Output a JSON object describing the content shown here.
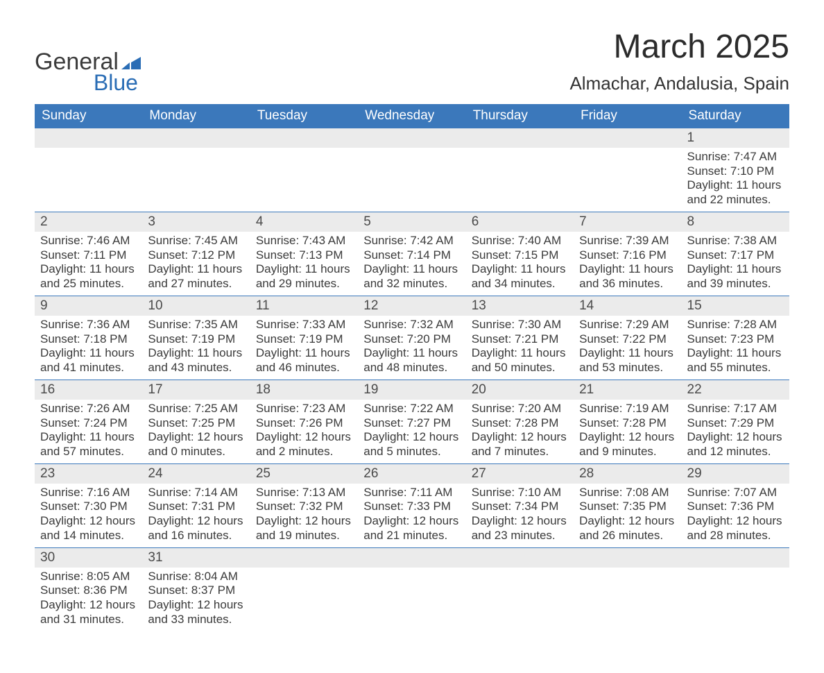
{
  "brand": {
    "word1": "General",
    "word2": "Blue",
    "text_color": "#3b3b3b",
    "accent_color": "#2a6db5"
  },
  "title": "March 2025",
  "location": "Almachar, Andalusia, Spain",
  "colors": {
    "header_bg": "#3b78bb",
    "header_text": "#ffffff",
    "daynum_bg": "#ebebeb",
    "daynum_text": "#4a4a4a",
    "cell_text": "#3a3a3a",
    "row_divider": "#3b78bb",
    "background": "#ffffff"
  },
  "fonts": {
    "title_fontsize": 48,
    "location_fontsize": 26,
    "header_fontsize": 19,
    "daynum_fontsize": 19,
    "cell_fontsize": 17
  },
  "weekday_headers": [
    "Sunday",
    "Monday",
    "Tuesday",
    "Wednesday",
    "Thursday",
    "Friday",
    "Saturday"
  ],
  "weeks": [
    {
      "days": [
        {
          "daynum": "",
          "lines": [
            "",
            "",
            "",
            ""
          ]
        },
        {
          "daynum": "",
          "lines": [
            "",
            "",
            "",
            ""
          ]
        },
        {
          "daynum": "",
          "lines": [
            "",
            "",
            "",
            ""
          ]
        },
        {
          "daynum": "",
          "lines": [
            "",
            "",
            "",
            ""
          ]
        },
        {
          "daynum": "",
          "lines": [
            "",
            "",
            "",
            ""
          ]
        },
        {
          "daynum": "",
          "lines": [
            "",
            "",
            "",
            ""
          ]
        },
        {
          "daynum": "1",
          "lines": [
            "Sunrise: 7:47 AM",
            "Sunset: 7:10 PM",
            "Daylight: 11 hours",
            "and 22 minutes."
          ]
        }
      ]
    },
    {
      "days": [
        {
          "daynum": "2",
          "lines": [
            "Sunrise: 7:46 AM",
            "Sunset: 7:11 PM",
            "Daylight: 11 hours",
            "and 25 minutes."
          ]
        },
        {
          "daynum": "3",
          "lines": [
            "Sunrise: 7:45 AM",
            "Sunset: 7:12 PM",
            "Daylight: 11 hours",
            "and 27 minutes."
          ]
        },
        {
          "daynum": "4",
          "lines": [
            "Sunrise: 7:43 AM",
            "Sunset: 7:13 PM",
            "Daylight: 11 hours",
            "and 29 minutes."
          ]
        },
        {
          "daynum": "5",
          "lines": [
            "Sunrise: 7:42 AM",
            "Sunset: 7:14 PM",
            "Daylight: 11 hours",
            "and 32 minutes."
          ]
        },
        {
          "daynum": "6",
          "lines": [
            "Sunrise: 7:40 AM",
            "Sunset: 7:15 PM",
            "Daylight: 11 hours",
            "and 34 minutes."
          ]
        },
        {
          "daynum": "7",
          "lines": [
            "Sunrise: 7:39 AM",
            "Sunset: 7:16 PM",
            "Daylight: 11 hours",
            "and 36 minutes."
          ]
        },
        {
          "daynum": "8",
          "lines": [
            "Sunrise: 7:38 AM",
            "Sunset: 7:17 PM",
            "Daylight: 11 hours",
            "and 39 minutes."
          ]
        }
      ]
    },
    {
      "days": [
        {
          "daynum": "9",
          "lines": [
            "Sunrise: 7:36 AM",
            "Sunset: 7:18 PM",
            "Daylight: 11 hours",
            "and 41 minutes."
          ]
        },
        {
          "daynum": "10",
          "lines": [
            "Sunrise: 7:35 AM",
            "Sunset: 7:19 PM",
            "Daylight: 11 hours",
            "and 43 minutes."
          ]
        },
        {
          "daynum": "11",
          "lines": [
            "Sunrise: 7:33 AM",
            "Sunset: 7:19 PM",
            "Daylight: 11 hours",
            "and 46 minutes."
          ]
        },
        {
          "daynum": "12",
          "lines": [
            "Sunrise: 7:32 AM",
            "Sunset: 7:20 PM",
            "Daylight: 11 hours",
            "and 48 minutes."
          ]
        },
        {
          "daynum": "13",
          "lines": [
            "Sunrise: 7:30 AM",
            "Sunset: 7:21 PM",
            "Daylight: 11 hours",
            "and 50 minutes."
          ]
        },
        {
          "daynum": "14",
          "lines": [
            "Sunrise: 7:29 AM",
            "Sunset: 7:22 PM",
            "Daylight: 11 hours",
            "and 53 minutes."
          ]
        },
        {
          "daynum": "15",
          "lines": [
            "Sunrise: 7:28 AM",
            "Sunset: 7:23 PM",
            "Daylight: 11 hours",
            "and 55 minutes."
          ]
        }
      ]
    },
    {
      "days": [
        {
          "daynum": "16",
          "lines": [
            "Sunrise: 7:26 AM",
            "Sunset: 7:24 PM",
            "Daylight: 11 hours",
            "and 57 minutes."
          ]
        },
        {
          "daynum": "17",
          "lines": [
            "Sunrise: 7:25 AM",
            "Sunset: 7:25 PM",
            "Daylight: 12 hours",
            "and 0 minutes."
          ]
        },
        {
          "daynum": "18",
          "lines": [
            "Sunrise: 7:23 AM",
            "Sunset: 7:26 PM",
            "Daylight: 12 hours",
            "and 2 minutes."
          ]
        },
        {
          "daynum": "19",
          "lines": [
            "Sunrise: 7:22 AM",
            "Sunset: 7:27 PM",
            "Daylight: 12 hours",
            "and 5 minutes."
          ]
        },
        {
          "daynum": "20",
          "lines": [
            "Sunrise: 7:20 AM",
            "Sunset: 7:28 PM",
            "Daylight: 12 hours",
            "and 7 minutes."
          ]
        },
        {
          "daynum": "21",
          "lines": [
            "Sunrise: 7:19 AM",
            "Sunset: 7:28 PM",
            "Daylight: 12 hours",
            "and 9 minutes."
          ]
        },
        {
          "daynum": "22",
          "lines": [
            "Sunrise: 7:17 AM",
            "Sunset: 7:29 PM",
            "Daylight: 12 hours",
            "and 12 minutes."
          ]
        }
      ]
    },
    {
      "days": [
        {
          "daynum": "23",
          "lines": [
            "Sunrise: 7:16 AM",
            "Sunset: 7:30 PM",
            "Daylight: 12 hours",
            "and 14 minutes."
          ]
        },
        {
          "daynum": "24",
          "lines": [
            "Sunrise: 7:14 AM",
            "Sunset: 7:31 PM",
            "Daylight: 12 hours",
            "and 16 minutes."
          ]
        },
        {
          "daynum": "25",
          "lines": [
            "Sunrise: 7:13 AM",
            "Sunset: 7:32 PM",
            "Daylight: 12 hours",
            "and 19 minutes."
          ]
        },
        {
          "daynum": "26",
          "lines": [
            "Sunrise: 7:11 AM",
            "Sunset: 7:33 PM",
            "Daylight: 12 hours",
            "and 21 minutes."
          ]
        },
        {
          "daynum": "27",
          "lines": [
            "Sunrise: 7:10 AM",
            "Sunset: 7:34 PM",
            "Daylight: 12 hours",
            "and 23 minutes."
          ]
        },
        {
          "daynum": "28",
          "lines": [
            "Sunrise: 7:08 AM",
            "Sunset: 7:35 PM",
            "Daylight: 12 hours",
            "and 26 minutes."
          ]
        },
        {
          "daynum": "29",
          "lines": [
            "Sunrise: 7:07 AM",
            "Sunset: 7:36 PM",
            "Daylight: 12 hours",
            "and 28 minutes."
          ]
        }
      ]
    },
    {
      "days": [
        {
          "daynum": "30",
          "lines": [
            "Sunrise: 8:05 AM",
            "Sunset: 8:36 PM",
            "Daylight: 12 hours",
            "and 31 minutes."
          ]
        },
        {
          "daynum": "31",
          "lines": [
            "Sunrise: 8:04 AM",
            "Sunset: 8:37 PM",
            "Daylight: 12 hours",
            "and 33 minutes."
          ]
        },
        {
          "daynum": "",
          "lines": [
            "",
            "",
            "",
            ""
          ]
        },
        {
          "daynum": "",
          "lines": [
            "",
            "",
            "",
            ""
          ]
        },
        {
          "daynum": "",
          "lines": [
            "",
            "",
            "",
            ""
          ]
        },
        {
          "daynum": "",
          "lines": [
            "",
            "",
            "",
            ""
          ]
        },
        {
          "daynum": "",
          "lines": [
            "",
            "",
            "",
            ""
          ]
        }
      ]
    }
  ]
}
